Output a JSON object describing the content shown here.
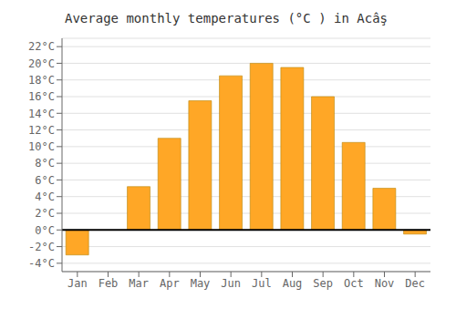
{
  "chart_data": {
    "type": "bar",
    "title": "Average monthly temperatures (°C ) in Acâş",
    "categories": [
      "Jan",
      "Feb",
      "Mar",
      "Apr",
      "May",
      "Jun",
      "Jul",
      "Aug",
      "Sep",
      "Oct",
      "Nov",
      "Dec"
    ],
    "values": [
      -3.0,
      0.0,
      5.2,
      11.0,
      15.5,
      18.5,
      20.0,
      19.5,
      16.0,
      10.5,
      5.0,
      -0.5
    ],
    "color": "#FFA726",
    "ylim": [
      -5,
      23
    ],
    "yticks": [
      {
        "value": -4,
        "label": "-4°C"
      },
      {
        "value": -2,
        "label": "-2°C"
      },
      {
        "value": 0,
        "label": "0°C"
      },
      {
        "value": 2,
        "label": "2°C"
      },
      {
        "value": 4,
        "label": "4°C"
      },
      {
        "value": 6,
        "label": "6°C"
      },
      {
        "value": 8,
        "label": "8°C"
      },
      {
        "value": 10,
        "label": "10°C"
      },
      {
        "value": 12,
        "label": "12°C"
      },
      {
        "value": 14,
        "label": "14°C"
      },
      {
        "value": 16,
        "label": "16°C"
      },
      {
        "value": 18,
        "label": "18°C"
      },
      {
        "value": 20,
        "label": "20°C"
      },
      {
        "value": 22,
        "label": "22°C"
      }
    ],
    "grid": true
  }
}
